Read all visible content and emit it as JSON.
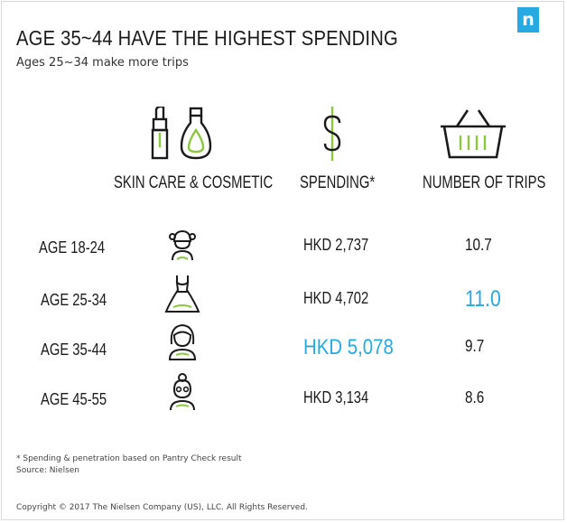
{
  "brand": {
    "logo_letter": "n",
    "accent": "#27a9e1",
    "highlight_green": "#8dc63f"
  },
  "header": {
    "title": "AGE 35~44 HAVE THE HIGHEST SPENDING",
    "subtitle": "Ages 25~34 make more trips"
  },
  "columns": {
    "category": "SKIN CARE & COSMETIC",
    "spending": "SPENDING*",
    "trips": "NUMBER OF TRIPS"
  },
  "icons": {
    "category": "cosmetics-icon",
    "spending": "dollar-icon",
    "trips": "shopping-basket-icon"
  },
  "rows": [
    {
      "age": "AGE 18-24",
      "icon": "young-girl-icon",
      "spending": "HKD 2,737",
      "trips": "10.7"
    },
    {
      "age": "AGE 25-34",
      "icon": "dress-icon",
      "spending": "HKD 4,702",
      "trips": "11.0"
    },
    {
      "age": "AGE 35-44",
      "icon": "woman-icon",
      "spending": "HKD 5,078",
      "trips": "9.7"
    },
    {
      "age": "AGE 45-55",
      "icon": "older-woman-icon",
      "spending": "HKD 3,134",
      "trips": "8.6"
    }
  ],
  "highlights": {
    "spending_row": 2,
    "trips_row": 1
  },
  "chart_data": {
    "type": "table",
    "title": "AGE 35~44 HAVE THE HIGHEST SPENDING",
    "subtitle": "Ages 25~34 make more trips",
    "columns": [
      "SKIN CARE & COSMETIC",
      "SPENDING*",
      "NUMBER OF TRIPS"
    ],
    "categories": [
      "AGE 18-24",
      "AGE 25-34",
      "AGE 35-44",
      "AGE 45-55"
    ],
    "series": [
      {
        "name": "SPENDING*",
        "values": [
          2737,
          4702,
          5078,
          3134
        ]
      },
      {
        "name": "NUMBER OF TRIPS",
        "values": [
          10.7,
          11.0,
          9.7,
          8.6
        ]
      }
    ]
  },
  "footnotes": {
    "note": "* Spending & penetration based on Pantry Check result",
    "source": "Source: Nielsen",
    "copyright": "Copyright © 2017 The Nielsen Company (US), LLC. All Rights Reserved."
  }
}
